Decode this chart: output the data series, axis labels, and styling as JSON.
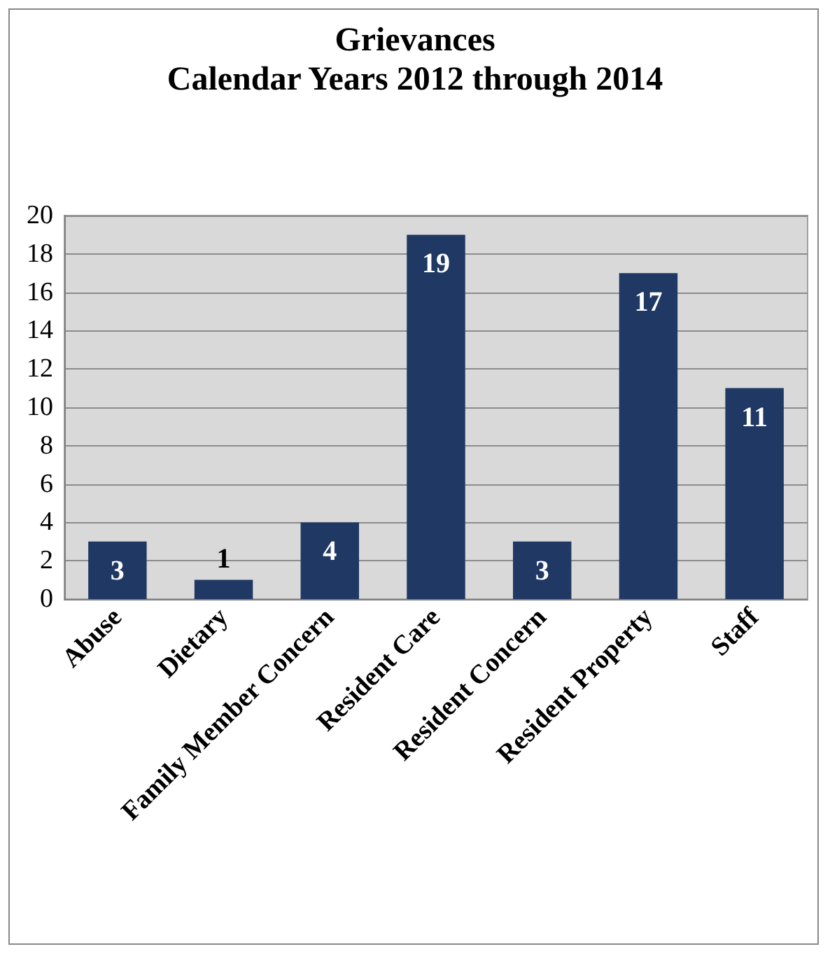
{
  "chart_data": {
    "type": "bar",
    "title": "Grievances",
    "subtitle": "Calendar Years 2012 through 2014",
    "categories": [
      "Abuse",
      "Dietary",
      "Family Member Concern",
      "Resident Care",
      "Resident Concern",
      "Resident Property",
      "Staff"
    ],
    "values": [
      3,
      1,
      4,
      19,
      3,
      17,
      11
    ],
    "color": "#1f3864",
    "ylim": [
      0,
      20
    ],
    "yticks": [
      0,
      2,
      4,
      6,
      8,
      10,
      12,
      14,
      16,
      18,
      20
    ],
    "grid": "y",
    "data_labels": true
  }
}
